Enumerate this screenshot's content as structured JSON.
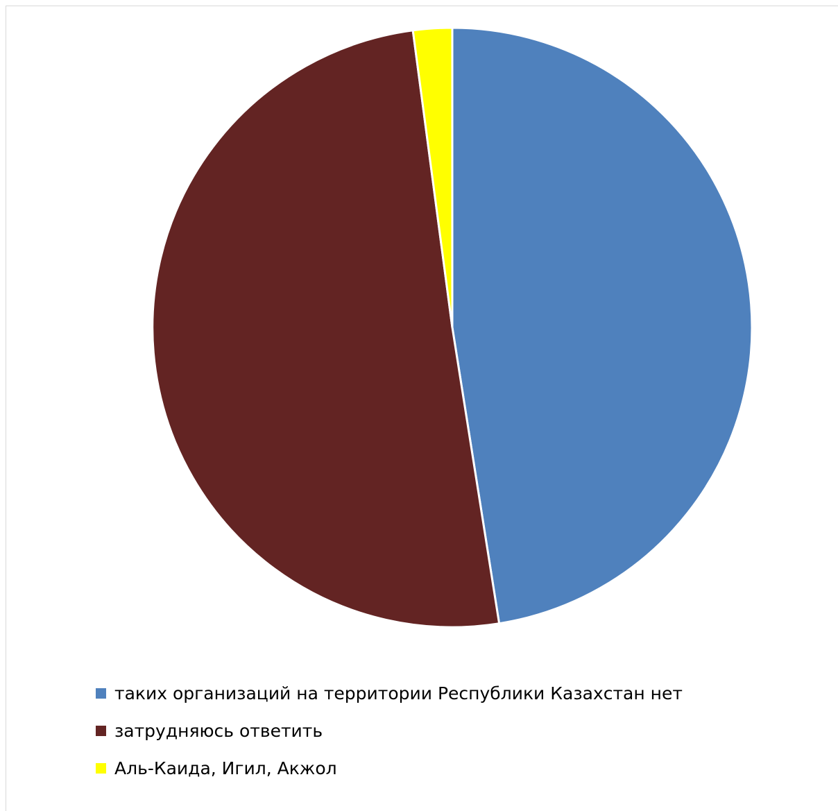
{
  "chart_data": {
    "type": "pie",
    "categories": [
      "таких организаций на территории Республики Казахстан нет",
      "затрудняюсь ответить",
      "Аль-Каида, Игил, Акжол"
    ],
    "values": [
      47.5,
      50.4,
      2.1
    ],
    "colors": [
      "#4f81bd",
      "#632423",
      "#ffff00"
    ],
    "start_angle_deg": 0,
    "direction": "clockwise",
    "slice_border_color": "#ffffff",
    "legend_position": "bottom",
    "title": ""
  }
}
